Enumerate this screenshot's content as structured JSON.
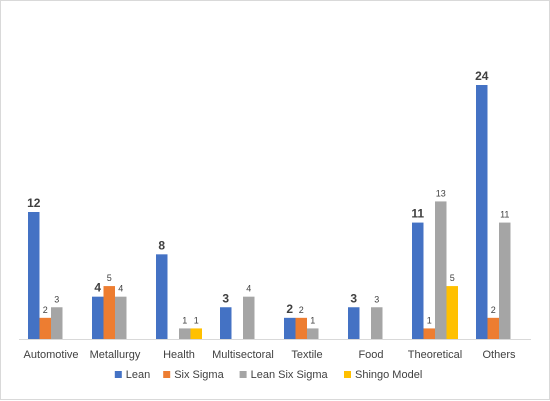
{
  "chart_data": {
    "type": "bar",
    "title": "",
    "xlabel": "",
    "ylabel": "",
    "ylim": [
      0,
      24
    ],
    "grid": false,
    "legend_position": "bottom",
    "categories": [
      "Automotive",
      "Metallurgy",
      "Health",
      "Multisectoral",
      "Textile",
      "Food",
      "Theoretical",
      "Others"
    ],
    "series": [
      {
        "name": "Lean",
        "color": "#4472C4",
        "values": [
          12,
          4,
          8,
          3,
          2,
          3,
          11,
          24
        ]
      },
      {
        "name": "Six Sigma",
        "color": "#ED7D31",
        "values": [
          2,
          5,
          null,
          null,
          2,
          null,
          1,
          2
        ]
      },
      {
        "name": "Lean Six Sigma",
        "color": "#A5A5A5",
        "values": [
          3,
          4,
          1,
          4,
          1,
          3,
          13,
          11
        ]
      },
      {
        "name": "Shingo Model",
        "color": "#FFC000",
        "values": [
          null,
          null,
          1,
          null,
          null,
          null,
          5,
          null
        ]
      }
    ]
  }
}
